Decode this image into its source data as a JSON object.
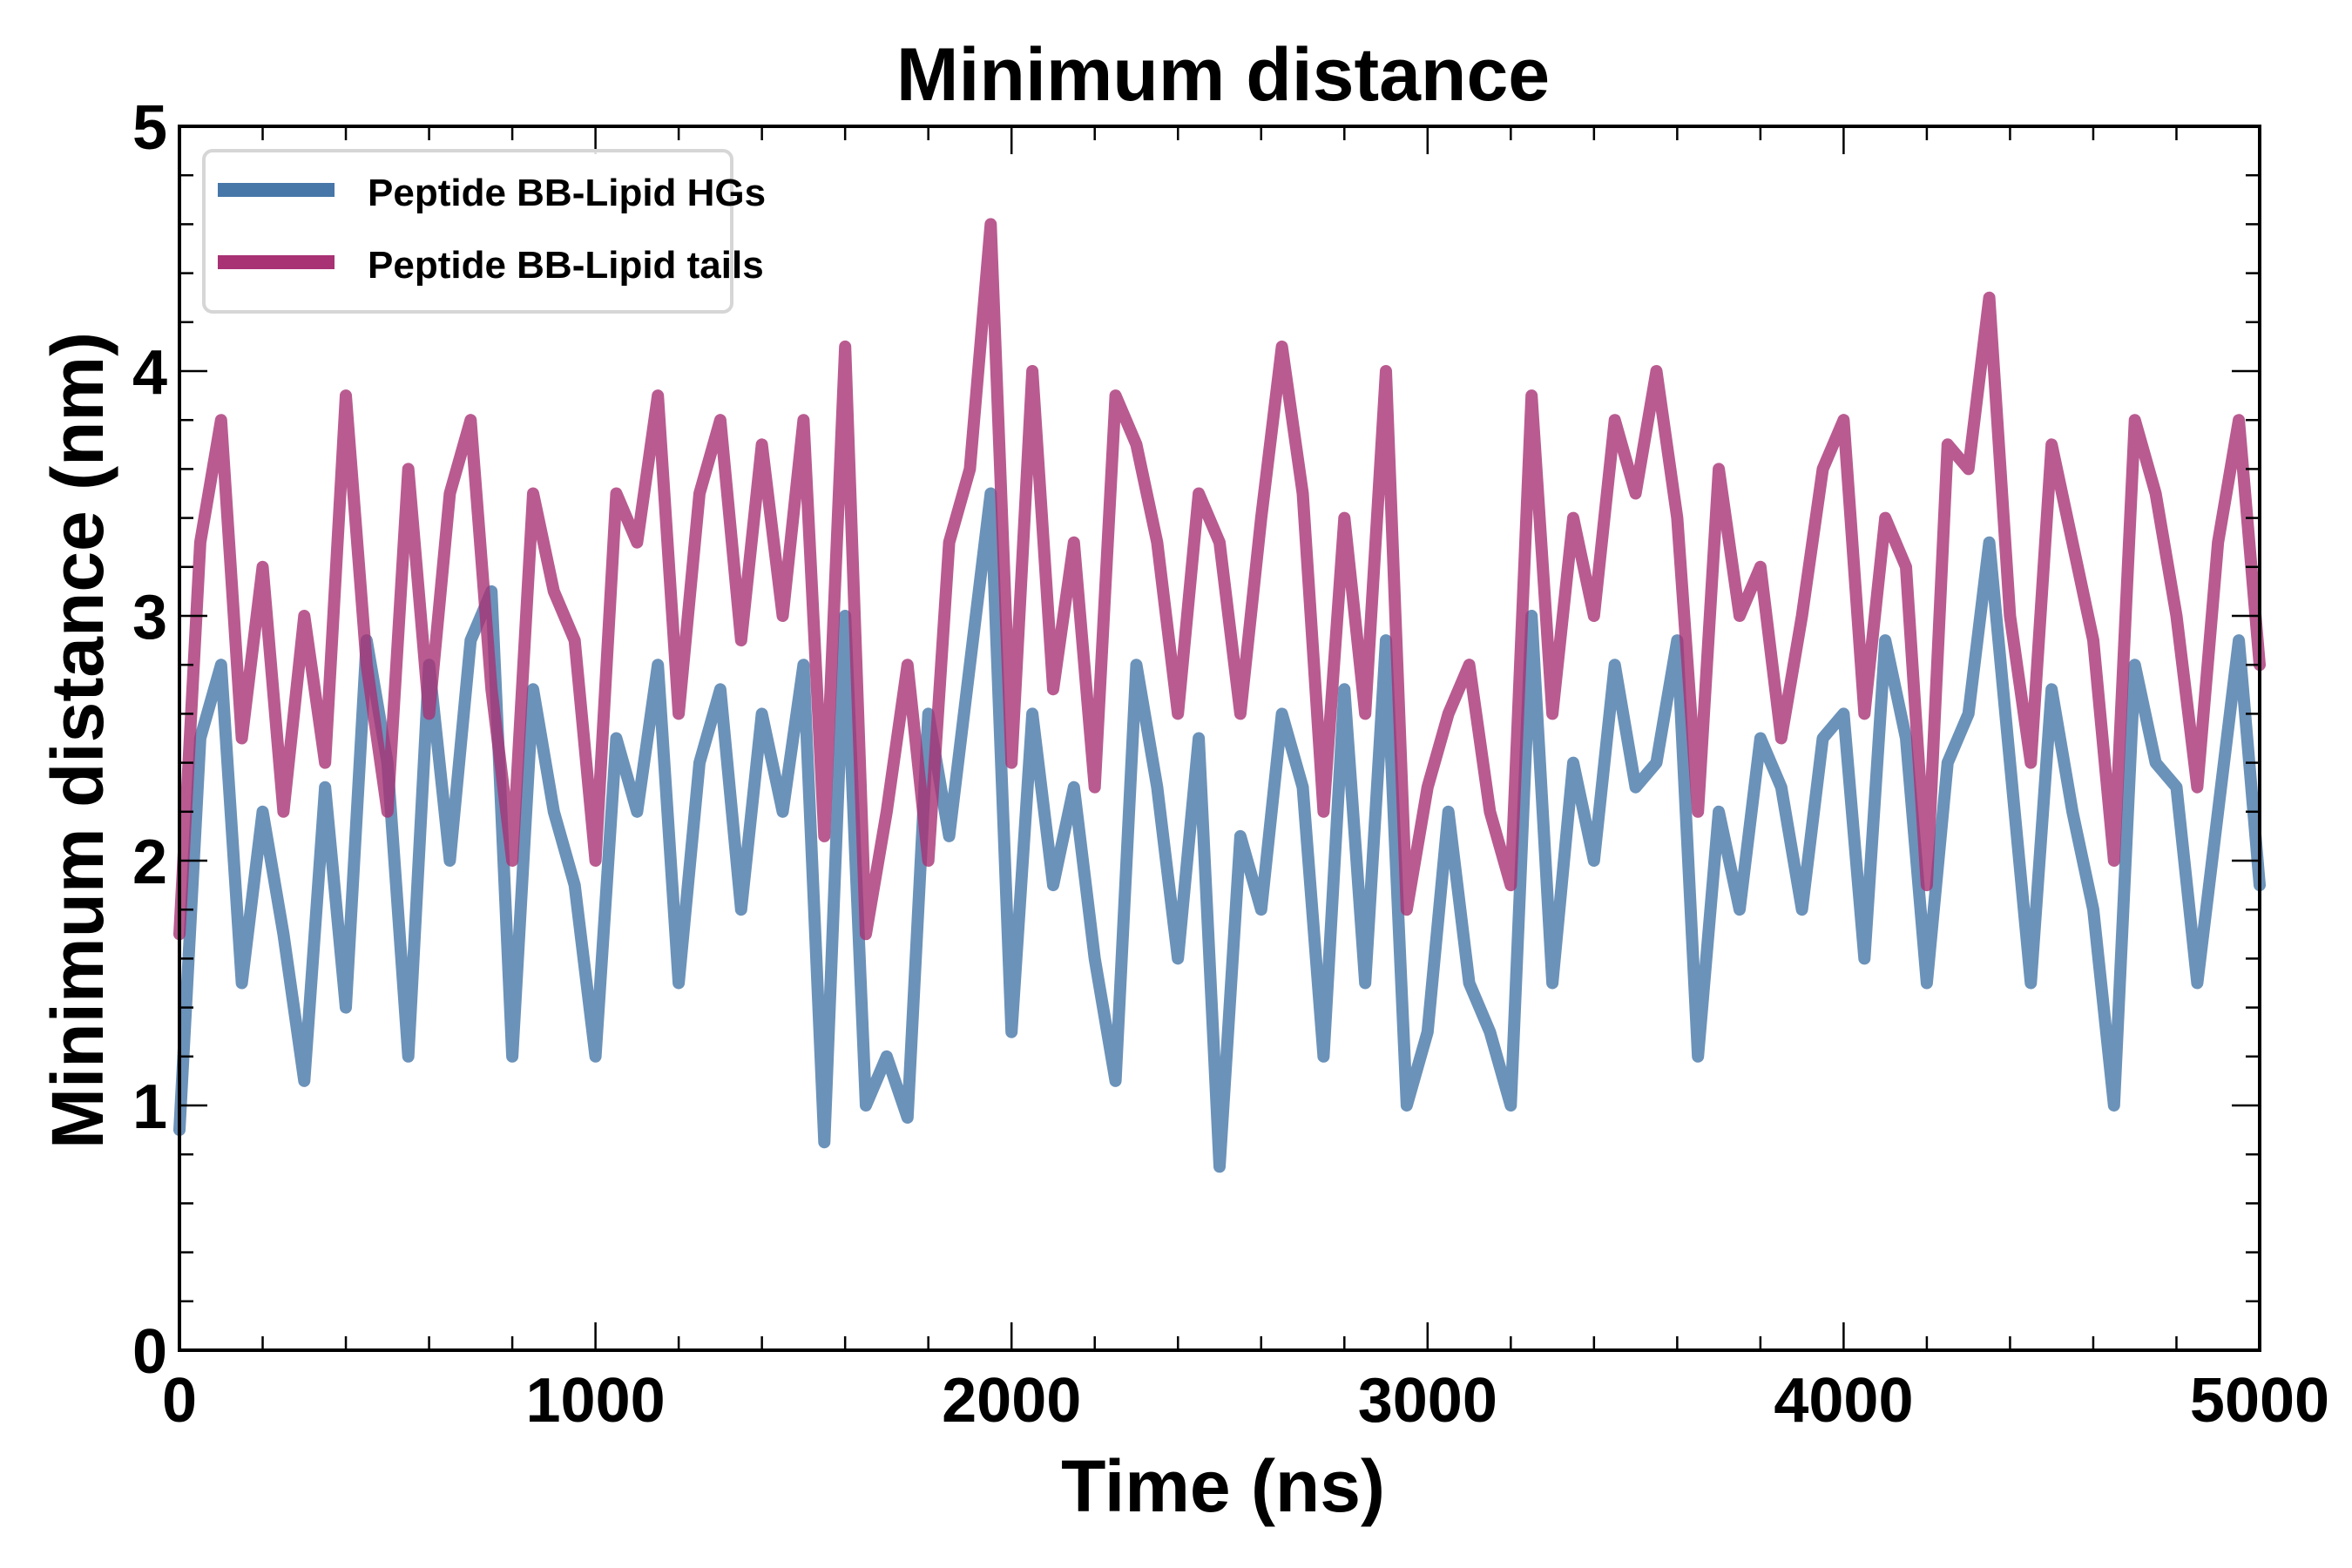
{
  "chart_data": {
    "type": "line",
    "title": "Minimum distance",
    "xlabel": "Time (ns)",
    "ylabel": "Minimum distance (nm)",
    "xlim": [
      0,
      5000
    ],
    "ylim": [
      0,
      5
    ],
    "xticks": [
      0,
      1000,
      2000,
      3000,
      4000,
      5000
    ],
    "xtick_labels": [
      "0",
      "1000",
      "2000",
      "3000",
      "4000",
      "5000"
    ],
    "x_minor_step": 200,
    "yticks": [
      0,
      1,
      2,
      3,
      4,
      5
    ],
    "ytick_labels": [
      "0",
      "1",
      "2",
      "3",
      "4",
      "5"
    ],
    "y_minor_step": 0.2,
    "grid": false,
    "legend_position": "top-left",
    "x_start": 0,
    "x_step": 50,
    "series": [
      {
        "name": "Peptide BB-Lipid HGs",
        "color": "#4677a8",
        "values": [
          0.9,
          2.5,
          2.8,
          1.5,
          2.2,
          1.7,
          1.1,
          2.3,
          1.4,
          2.9,
          2.4,
          1.2,
          2.8,
          2.0,
          2.9,
          3.1,
          1.2,
          2.7,
          2.2,
          1.9,
          1.2,
          2.5,
          2.2,
          2.8,
          1.5,
          2.4,
          2.7,
          1.8,
          2.6,
          2.2,
          2.8,
          0.85,
          3.0,
          1.0,
          1.2,
          0.95,
          2.6,
          2.1,
          2.8,
          3.5,
          1.3,
          2.6,
          1.9,
          2.3,
          1.6,
          1.1,
          2.8,
          2.3,
          1.6,
          2.5,
          0.75,
          2.1,
          1.8,
          2.6,
          2.3,
          1.2,
          2.7,
          1.5,
          2.9,
          1.0,
          1.3,
          2.2,
          1.5,
          1.3,
          1.0,
          3.0,
          1.5,
          2.4,
          2.0,
          2.8,
          2.3,
          2.4,
          2.9,
          1.2,
          2.2,
          1.8,
          2.5,
          2.3,
          1.8,
          2.5,
          2.6,
          1.6,
          2.9,
          2.5,
          1.5,
          2.4,
          2.6,
          3.3,
          2.4,
          1.5,
          2.7,
          2.2,
          1.8,
          1.0,
          2.8,
          2.4,
          2.3,
          1.5,
          2.2,
          2.9,
          1.9
        ]
      },
      {
        "name": "Peptide BB-Lipid tails",
        "color": "#a83274",
        "values": [
          1.7,
          3.3,
          3.8,
          2.5,
          3.2,
          2.2,
          3.0,
          2.4,
          3.9,
          2.8,
          2.2,
          3.6,
          2.6,
          3.5,
          3.8,
          2.7,
          2.0,
          3.5,
          3.1,
          2.9,
          2.0,
          3.5,
          3.3,
          3.9,
          2.6,
          3.5,
          3.8,
          2.9,
          3.7,
          3.0,
          3.8,
          2.1,
          4.1,
          1.7,
          2.2,
          2.8,
          2.0,
          3.3,
          3.6,
          4.6,
          2.4,
          4.0,
          2.7,
          3.3,
          2.3,
          3.9,
          3.7,
          3.3,
          2.6,
          3.5,
          3.3,
          2.6,
          3.4,
          4.1,
          3.5,
          2.2,
          3.4,
          2.6,
          4.0,
          1.8,
          2.3,
          2.6,
          2.8,
          2.2,
          1.9,
          3.9,
          2.6,
          3.4,
          3.0,
          3.8,
          3.5,
          4.0,
          3.4,
          2.2,
          3.6,
          3.0,
          3.2,
          2.5,
          3.0,
          3.6,
          3.8,
          2.6,
          3.4,
          3.2,
          1.9,
          3.7,
          3.6,
          4.3,
          3.0,
          2.4,
          3.7,
          3.3,
          2.9,
          2.0,
          3.8,
          3.5,
          3.0,
          2.3,
          3.3,
          3.8,
          2.8
        ]
      }
    ]
  }
}
